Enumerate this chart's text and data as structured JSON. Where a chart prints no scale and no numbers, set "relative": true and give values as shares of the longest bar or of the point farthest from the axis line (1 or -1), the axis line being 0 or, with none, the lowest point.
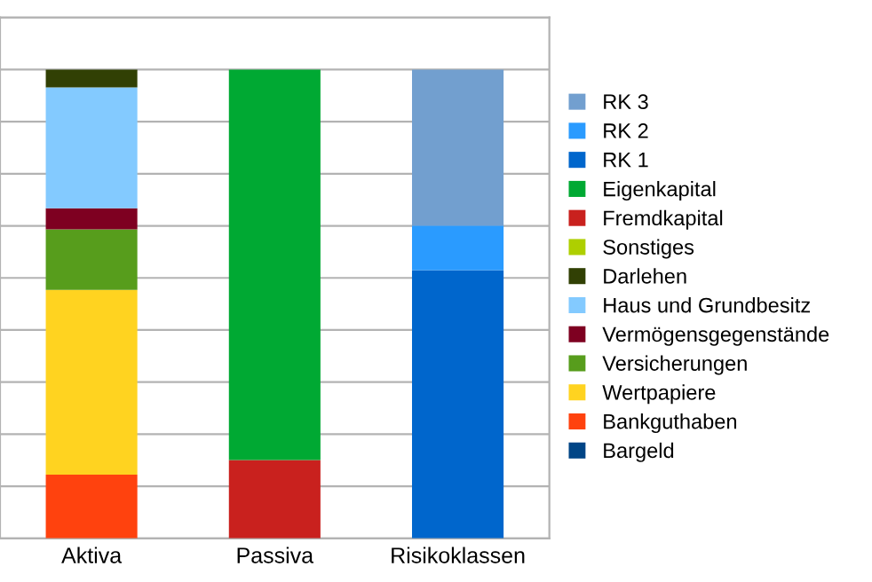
{
  "chart_data": {
    "type": "bar",
    "stacked": true,
    "relative": true,
    "grid": "y",
    "legend": "right",
    "categories": [
      "Aktiva",
      "Passiva",
      "Risikoklassen"
    ],
    "series": [
      {
        "name": "Bargeld",
        "color": "#004586",
        "values": [
          0,
          null,
          null
        ]
      },
      {
        "name": "Bankguthaben",
        "color": "#ff420e",
        "values": [
          0.136,
          null,
          null
        ]
      },
      {
        "name": "Wertpapiere",
        "color": "#ffd320",
        "values": [
          0.394,
          null,
          null
        ]
      },
      {
        "name": "Versicherungen",
        "color": "#579d1c",
        "values": [
          0.129,
          null,
          null
        ]
      },
      {
        "name": "Vermögensgegenstände",
        "color": "#7e0021",
        "values": [
          0.045,
          null,
          null
        ]
      },
      {
        "name": "Haus und Grundbesitz",
        "color": "#83caff",
        "values": [
          0.258,
          null,
          null
        ]
      },
      {
        "name": "Darlehen",
        "color": "#314004",
        "values": [
          0.038,
          null,
          null
        ]
      },
      {
        "name": "Sonstiges",
        "color": "#aecf00",
        "values": [
          0,
          null,
          null
        ]
      },
      {
        "name": "Fremdkapital",
        "color": "#c9211e",
        "values": [
          null,
          0.167,
          null
        ]
      },
      {
        "name": "Eigenkapital",
        "color": "#00a933",
        "values": [
          null,
          0.833,
          null
        ]
      },
      {
        "name": "RK 1",
        "color": "#0066cc",
        "values": [
          null,
          null,
          0.572
        ]
      },
      {
        "name": "RK 2",
        "color": "#2a9bff",
        "values": [
          null,
          null,
          0.095
        ]
      },
      {
        "name": "RK 3",
        "color": "#729fcf",
        "values": [
          null,
          null,
          0.333
        ]
      }
    ]
  }
}
